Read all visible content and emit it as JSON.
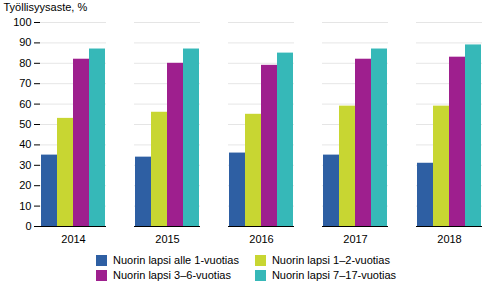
{
  "chart_data": {
    "type": "bar",
    "categories": [
      "2014",
      "2015",
      "2016",
      "2017",
      "2018"
    ],
    "series": [
      {
        "name": "Nuorin lapsi alle 1-vuotias",
        "color": "#2e5fa3",
        "values": [
          35,
          34,
          36,
          35,
          31
        ]
      },
      {
        "name": "Nuorin lapsi 1–2-vuotias",
        "color": "#c8d632",
        "values": [
          53,
          56,
          55,
          59,
          59
        ]
      },
      {
        "name": "Nuorin lapsi 3–6-vuotias",
        "color": "#9e1f8e",
        "values": [
          82,
          80,
          79,
          82,
          83
        ]
      },
      {
        "name": "Nuorin lapsi 7–17-vuotias",
        "color": "#36b8b8",
        "values": [
          87,
          87,
          85,
          87,
          89
        ]
      }
    ],
    "ylabel": "Työllisyysaste, %",
    "ylim": [
      0,
      100
    ],
    "yticks": [
      0,
      10,
      20,
      30,
      40,
      50,
      60,
      70,
      80,
      90,
      100
    ],
    "grid": true,
    "legend": "bottom"
  }
}
